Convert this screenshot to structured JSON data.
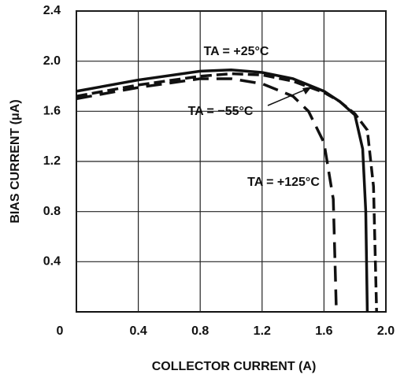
{
  "chart_data": {
    "type": "line",
    "y_label": "BIAS CURRENT (μA)",
    "x_label": "COLLECTOR CURRENT (A)",
    "xlim": [
      0,
      2
    ],
    "ylim": [
      0,
      2.4
    ],
    "xticks": [
      0,
      0.4,
      0.8,
      1.2,
      1.6,
      {
        "value": 2,
        "label": "2.0"
      }
    ],
    "yticks": [
      0.4,
      0.8,
      1.2,
      1.6,
      {
        "value": 2,
        "label": "2.0"
      },
      2.4
    ],
    "grid": true,
    "series": [
      {
        "name": "TA = +25°C",
        "color": "#111111",
        "dash": "solid",
        "x": [
          0,
          0.4,
          0.8,
          1.0,
          1.2,
          1.4,
          1.6,
          1.7,
          1.8,
          1.85,
          1.87,
          1.88
        ],
        "values": [
          1.76,
          1.85,
          1.92,
          1.93,
          1.91,
          1.86,
          1.76,
          1.68,
          1.57,
          1.3,
          0.8,
          0
        ]
      },
      {
        "name": "TA = −55°C",
        "color": "#111111",
        "dash": "dashed",
        "x": [
          0,
          0.4,
          0.8,
          1.0,
          1.2,
          1.4,
          1.6,
          1.7,
          1.8,
          1.88,
          1.92,
          1.94
        ],
        "values": [
          1.72,
          1.81,
          1.88,
          1.9,
          1.89,
          1.84,
          1.75,
          1.68,
          1.58,
          1.45,
          1.0,
          0
        ]
      },
      {
        "name": "TA = +125°C",
        "color": "#111111",
        "dash": "long-dashed",
        "x": [
          0,
          0.4,
          0.8,
          1.0,
          1.2,
          1.4,
          1.5,
          1.6,
          1.66,
          1.68
        ],
        "values": [
          1.7,
          1.79,
          1.86,
          1.86,
          1.82,
          1.72,
          1.6,
          1.35,
          0.9,
          0
        ]
      }
    ]
  }
}
